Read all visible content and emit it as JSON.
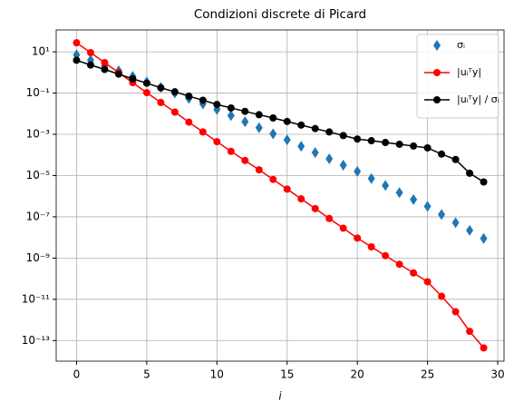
{
  "chart_data": {
    "type": "line",
    "title": "Condizioni discrete di Picard",
    "xlabel": "i",
    "x": [
      0,
      1,
      2,
      3,
      4,
      5,
      6,
      7,
      8,
      9,
      10,
      11,
      12,
      13,
      14,
      15,
      16,
      17,
      18,
      19,
      20,
      21,
      22,
      23,
      24,
      25,
      26,
      27,
      28,
      29
    ],
    "series": [
      {
        "name": "σᵢ",
        "color": "#1f77b4",
        "marker": "diamond",
        "line": false,
        "values": [
          7.1,
          3.9,
          2.1,
          1.2,
          0.65,
          0.35,
          0.19,
          0.1,
          0.055,
          0.03,
          0.016,
          0.0081,
          0.0041,
          0.0021,
          0.00105,
          0.00054,
          0.00026,
          0.00013,
          6.5e-05,
          3.2e-05,
          1.6e-05,
          7.2e-06,
          3.3e-06,
          1.5e-06,
          6.9e-07,
          3.2e-07,
          1.3e-07,
          5.2e-08,
          2.2e-08,
          8.9e-09
        ]
      },
      {
        "name": "|uᵢᵀy|",
        "color": "#ff0000",
        "marker": "circle",
        "line": true,
        "values": [
          27.5,
          9.1,
          3.0,
          0.98,
          0.32,
          0.105,
          0.035,
          0.012,
          0.0039,
          0.0013,
          0.00044,
          0.00015,
          5.4e-05,
          1.9e-05,
          6.5e-06,
          2.2e-06,
          7.4e-07,
          2.5e-07,
          8.3e-08,
          2.8e-08,
          9.3e-09,
          3.5e-09,
          1.3e-09,
          5e-10,
          1.9e-10,
          7.1e-11,
          1.4e-11,
          2.5e-12,
          2.8e-13,
          4.4e-14
        ]
      },
      {
        "name": "|uᵢᵀy| / σᵢ",
        "color": "#000000",
        "marker": "circle",
        "line": true,
        "values": [
          3.9,
          2.3,
          1.4,
          0.83,
          0.49,
          0.3,
          0.18,
          0.115,
          0.071,
          0.045,
          0.028,
          0.019,
          0.013,
          0.0089,
          0.0062,
          0.0042,
          0.0028,
          0.0019,
          0.0013,
          0.00087,
          0.00059,
          0.00049,
          0.0004,
          0.00033,
          0.00027,
          0.00022,
          0.00011,
          6e-05,
          1.3e-05,
          4.9e-06
        ]
      }
    ],
    "xlim": [
      -1.45,
      30.45
    ],
    "xticks": [
      0,
      5,
      10,
      15,
      20,
      25,
      30
    ],
    "ylim": [
      1e-14,
      115
    ],
    "ylog": true,
    "yticks": [
      {
        "value": 10,
        "label": "10¹"
      },
      {
        "value": 0.1,
        "label": "10⁻¹"
      },
      {
        "value": 0.001,
        "label": "10⁻³"
      },
      {
        "value": 1e-05,
        "label": "10⁻⁵"
      },
      {
        "value": 1e-07,
        "label": "10⁻⁷"
      },
      {
        "value": 1e-09,
        "label": "10⁻⁹"
      },
      {
        "value": 1e-11,
        "label": "10⁻¹¹"
      },
      {
        "value": 1e-13,
        "label": "10⁻¹³"
      }
    ],
    "grid": true,
    "legend": "upper right"
  }
}
